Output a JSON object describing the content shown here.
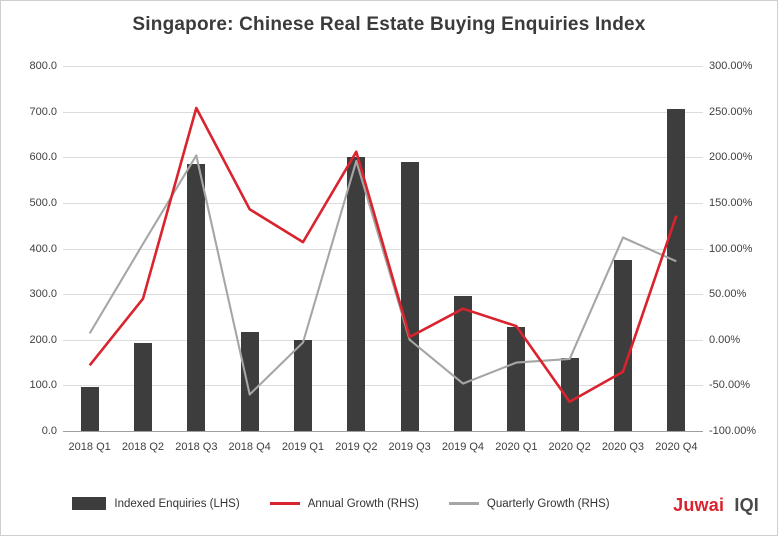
{
  "title": "Singapore: Chinese Real Estate Buying Enquiries Index",
  "legend": [
    {
      "label": "Indexed Enquiries (LHS)",
      "type": "bar",
      "color": "#3d3d3d"
    },
    {
      "label": "Annual Growth (RHS)",
      "type": "line",
      "color": "#d9232e"
    },
    {
      "label": "Quarterly Growth (RHS)",
      "type": "line",
      "color": "#a6a6a6"
    }
  ],
  "logo": {
    "part1": "Juwai",
    "part2": "IQI"
  },
  "chart_data": {
    "type": "bar+line",
    "title": "Singapore: Chinese Real Estate Buying Enquiries Index",
    "categories": [
      "2018 Q1",
      "2018 Q2",
      "2018 Q3",
      "2018 Q4",
      "2019 Q1",
      "2019 Q2",
      "2019 Q3",
      "2019 Q4",
      "2020 Q1",
      "2020 Q2",
      "2020 Q3",
      "2020 Q4"
    ],
    "series": [
      {
        "name": "Indexed Enquiries (LHS)",
        "type": "bar",
        "axis": "left",
        "color": "#3d3d3d",
        "values": [
          97,
          192,
          585,
          218,
          200,
          600,
          590,
          295,
          228,
          160,
          375,
          705
        ]
      },
      {
        "name": "Annual Growth (RHS)",
        "type": "line",
        "axis": "right",
        "color": "#d9232e",
        "values": [
          -28,
          45,
          254,
          143,
          107,
          206,
          3,
          34,
          15,
          -68,
          -35,
          136
        ]
      },
      {
        "name": "Quarterly Growth (RHS)",
        "type": "line",
        "axis": "right",
        "color": "#a6a6a6",
        "values": [
          7,
          105,
          202,
          -60,
          -3,
          196,
          0,
          -48,
          -25,
          -21,
          112,
          86
        ]
      }
    ],
    "left_axis": {
      "min": 0,
      "max": 800,
      "step": 100,
      "tick_labels": [
        "800.0",
        "700.0",
        "600.0",
        "500.0",
        "400.0",
        "300.0",
        "200.0",
        "100.0",
        "0.0"
      ]
    },
    "right_axis": {
      "min": -100,
      "max": 300,
      "step": 50,
      "tick_labels": [
        "300.00%",
        "250.00%",
        "200.00%",
        "150.00%",
        "100.00%",
        "50.00%",
        "0.00%",
        "-50.00%",
        "-100.00%"
      ]
    },
    "grid": true,
    "legend_position": "bottom"
  }
}
